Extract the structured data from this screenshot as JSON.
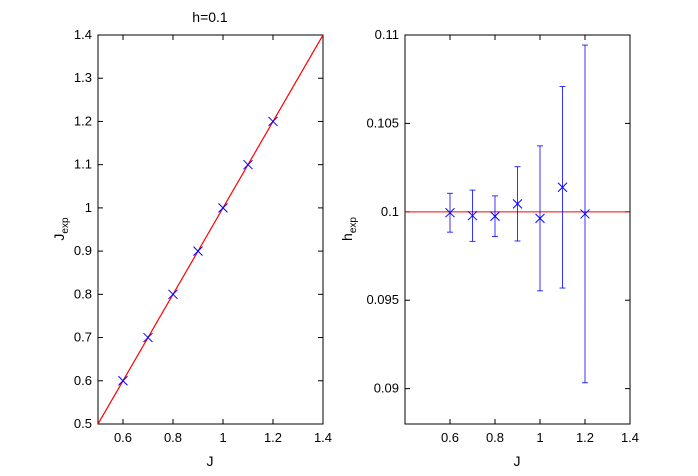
{
  "chart_data": [
    {
      "type": "scatter",
      "title": "h=0.1",
      "xlabel": "J",
      "ylabel_main": "J",
      "ylabel_sub": "exp",
      "xlim": [
        0.5,
        1.4
      ],
      "ylim": [
        0.5,
        1.4
      ],
      "xticks": [
        "0.6",
        "0.8",
        "1",
        "1.2",
        "1.4"
      ],
      "yticks": [
        "0.5",
        "0.6",
        "0.7",
        "0.8",
        "0.9",
        "1",
        "1.1",
        "1.2",
        "1.3",
        "1.4"
      ],
      "grid": false,
      "series": [
        {
          "type": "line",
          "color": "#ff0000",
          "x": [
            0.5,
            1.4
          ],
          "y": [
            0.5,
            1.4
          ]
        },
        {
          "type": "scatter",
          "marker": "x",
          "color": "#0000ff",
          "x": [
            0.6,
            0.7,
            0.8,
            0.9,
            1.0,
            1.1,
            1.2
          ],
          "y": [
            0.6,
            0.7,
            0.8,
            0.9,
            1.0,
            1.1,
            1.2
          ]
        }
      ]
    },
    {
      "type": "scatter",
      "title": "",
      "xlabel": "J",
      "ylabel_main": "h",
      "ylabel_sub": "exp",
      "xlim": [
        0.4,
        1.4
      ],
      "ylim": [
        0.088,
        0.11
      ],
      "xticks": [
        "0.6",
        "0.8",
        "1",
        "1.2",
        "1.4"
      ],
      "yticks": [
        "0.09",
        "0.095",
        "0.1",
        "0.105",
        "0.11"
      ],
      "grid": false,
      "series": [
        {
          "type": "hline",
          "color": "#ff0000",
          "y": 0.1
        },
        {
          "type": "errorbar",
          "marker": "x",
          "color": "#0000ff",
          "x": [
            0.6,
            0.7,
            0.8,
            0.9,
            1.0,
            1.1,
            1.2
          ],
          "y": [
            0.09995,
            0.09978,
            0.09975,
            0.10045,
            0.09963,
            0.10139,
            0.09988
          ],
          "error": [
            0.0011,
            0.00145,
            0.00115,
            0.0021,
            0.0041,
            0.0057,
            0.00955
          ]
        }
      ]
    }
  ]
}
